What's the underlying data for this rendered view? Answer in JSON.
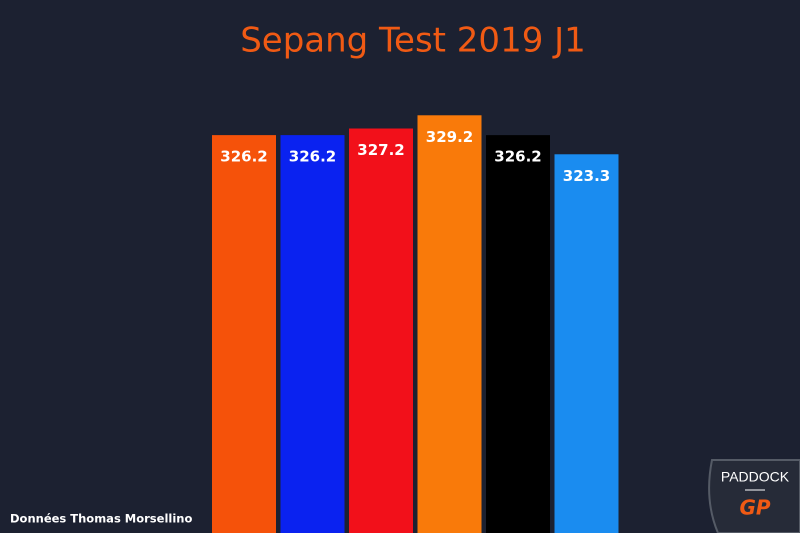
{
  "chart_data": {
    "type": "bar",
    "title": "Sepang Test 2019 J1",
    "values": [
      326.2,
      326.2,
      327.2,
      329.2,
      326.2,
      323.3
    ],
    "colors": [
      "#f5520a",
      "#0a22f0",
      "#f2101a",
      "#f97a0a",
      "#000000",
      "#1a8cf0"
    ],
    "ylim": [
      266,
      330
    ],
    "source": "Données Thomas Morsellino"
  },
  "logo": {
    "top": "PADDOCK",
    "bottom": "GP"
  }
}
